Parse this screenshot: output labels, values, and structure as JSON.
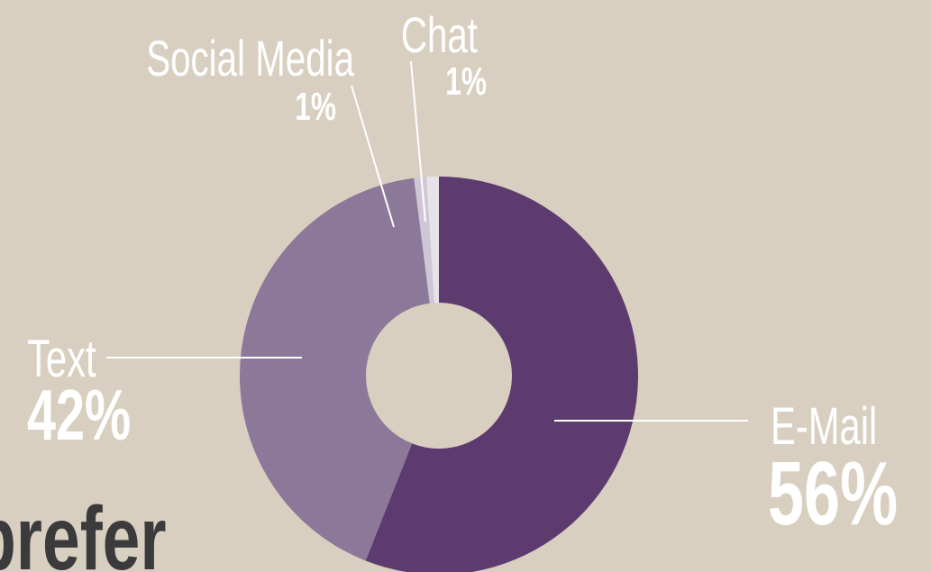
{
  "chart_data": {
    "type": "donut",
    "categories": [
      "E-Mail",
      "Text",
      "Social Media",
      "Chat"
    ],
    "values": [
      56,
      42,
      1,
      1
    ],
    "value_labels": [
      "56%",
      "42%",
      "1%",
      "1%"
    ],
    "colors": [
      "#5e3b6e",
      "#8c7898",
      "#cfc6d6",
      "#e6e3e8"
    ]
  },
  "caption": "prefer"
}
